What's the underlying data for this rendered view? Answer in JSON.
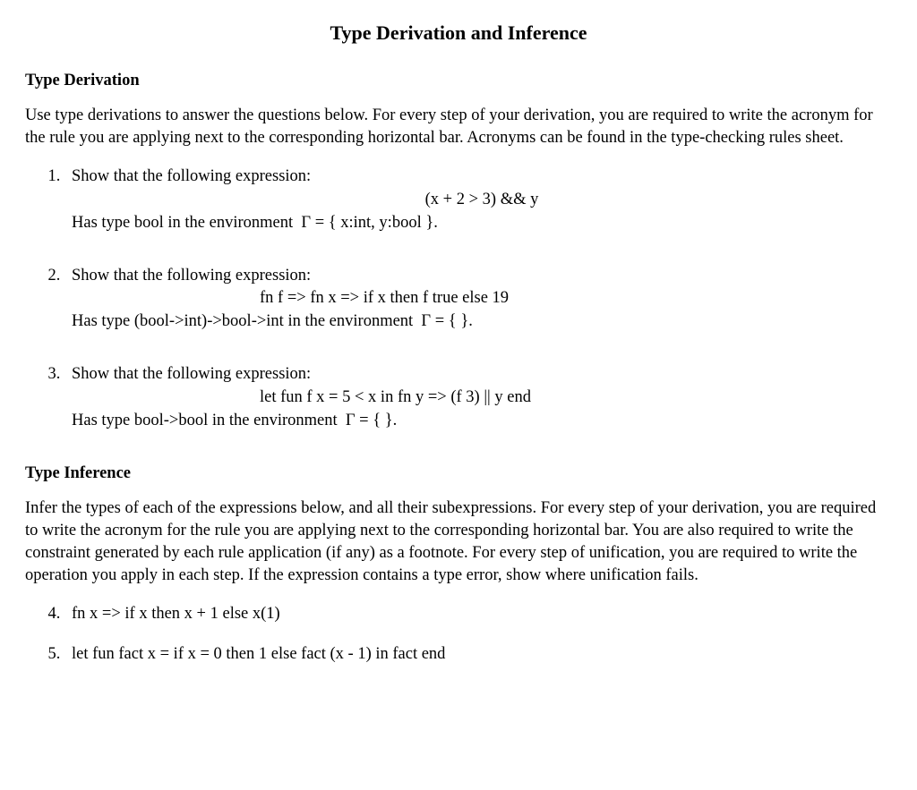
{
  "title": "Type Derivation and Inference",
  "section1_head": "Type Derivation",
  "section1_para": "Use type derivations to answer the questions below. For every step of your derivation, you are required to write the acronym for the rule you are applying next to the corresponding horizontal bar. Acronyms can be found in the type-checking rules sheet.",
  "q1_intro": "Show that the following expression:",
  "q1_expr": "(x + 2 > 3) && y",
  "q1_close": "Has type bool in the environment  Γ = { x:int, y:bool }.",
  "q2_intro": "Show that the following expression:",
  "q2_expr": "fn f => fn x => if x then f true else 19",
  "q2_close": "Has type (bool->int)->bool->int in the environment  Γ = { }.",
  "q3_intro": "Show that the following expression:",
  "q3_expr": "let fun f x = 5 < x in fn y => (f 3) || y end",
  "q3_close": "Has type bool->bool in the environment  Γ = { }.",
  "section2_head": "Type Inference",
  "section2_para": "Infer the types of each of the expressions below, and all their subexpressions. For every step of your derivation, you are required to write the acronym for the rule you are applying next to the corresponding horizontal bar. You are also required to write the constraint generated by each rule application (if any) as a footnote. For every step of unification, you are required to write the operation you apply in each step. If the expression contains a type error, show where unification fails.",
  "q4": "fn x => if x then x + 1 else x(1)",
  "q5": "let fun fact x = if x = 0 then 1 else fact (x - 1) in fact end"
}
